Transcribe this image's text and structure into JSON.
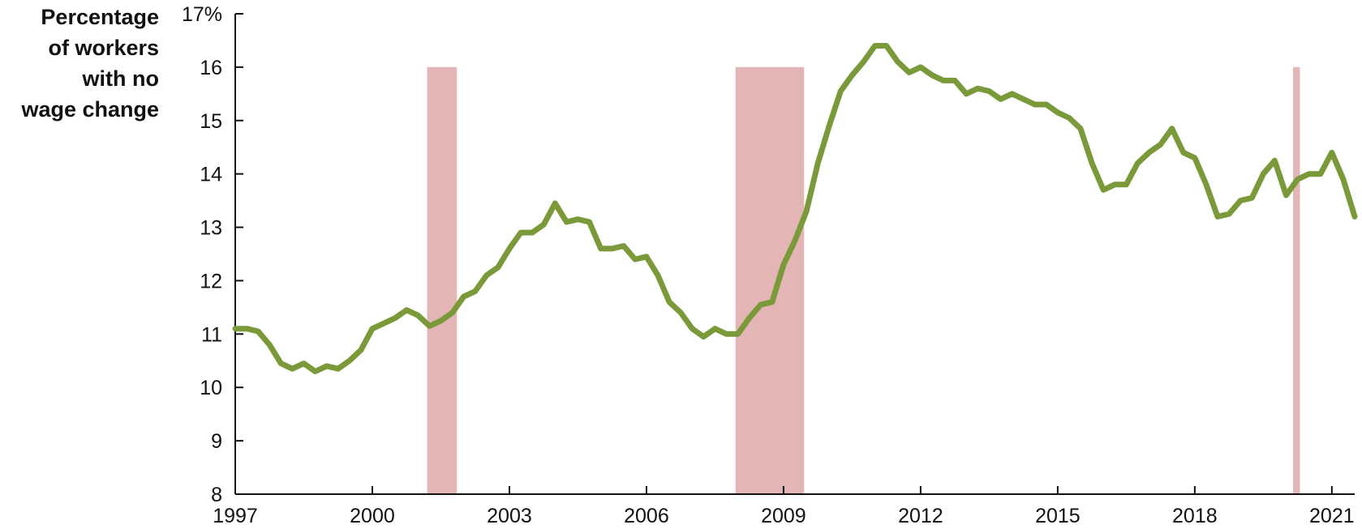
{
  "chart_data": {
    "type": "line",
    "ylabel_lines": [
      "Percentage",
      "of workers",
      "with no",
      "wage change"
    ],
    "ylim": [
      8,
      17
    ],
    "y_ticks": [
      8,
      9,
      10,
      11,
      12,
      13,
      14,
      15,
      16,
      17
    ],
    "y_tick_labels": [
      "8",
      "9",
      "10",
      "11",
      "12",
      "13",
      "14",
      "15",
      "16",
      "17%"
    ],
    "xlim": [
      1997,
      2021.5
    ],
    "x_ticks": [
      1997,
      2000,
      2003,
      2006,
      2009,
      2012,
      2015,
      2018,
      2021
    ],
    "x_tick_labels": [
      "1997",
      "2000",
      "2003",
      "2006",
      "2009",
      "2012",
      "2015",
      "2018",
      "2021"
    ],
    "recessions": [
      {
        "start": 2001.2,
        "end": 2001.85,
        "top": 16
      },
      {
        "start": 2007.95,
        "end": 2009.45,
        "top": 16
      },
      {
        "start": 2020.15,
        "end": 2020.3,
        "top": 16
      }
    ],
    "line_color": "#7a9a3a",
    "recession_color": "#e3b5b4",
    "series": [
      {
        "x": [
          1997.0,
          1997.25,
          1997.5,
          1997.75,
          1998.0,
          1998.25,
          1998.5,
          1998.75,
          1999.0,
          1999.25,
          1999.5,
          1999.75,
          2000.0,
          2000.25,
          2000.5,
          2000.75,
          2001.0,
          2001.25,
          2001.5,
          2001.75,
          2002.0,
          2002.25,
          2002.5,
          2002.75,
          2003.0,
          2003.25,
          2003.5,
          2003.75,
          2004.0,
          2004.25,
          2004.5,
          2004.75,
          2005.0,
          2005.25,
          2005.5,
          2005.75,
          2006.0,
          2006.25,
          2006.5,
          2006.75,
          2007.0,
          2007.25,
          2007.5,
          2007.75,
          2008.0,
          2008.25,
          2008.5,
          2008.75,
          2009.0,
          2009.25,
          2009.5,
          2009.75,
          2010.0,
          2010.25,
          2010.5,
          2010.75,
          2011.0,
          2011.25,
          2011.5,
          2011.75,
          2012.0,
          2012.25,
          2012.5,
          2012.75,
          2013.0,
          2013.25,
          2013.5,
          2013.75,
          2014.0,
          2014.25,
          2014.5,
          2014.75,
          2015.0,
          2015.25,
          2015.5,
          2015.75,
          2016.0,
          2016.25,
          2016.5,
          2016.75,
          2017.0,
          2017.25,
          2017.5,
          2017.75,
          2018.0,
          2018.25,
          2018.5,
          2018.75,
          2019.0,
          2019.25,
          2019.5,
          2019.75,
          2020.0,
          2020.25,
          2020.5,
          2020.75,
          2021.0,
          2021.25,
          2021.5
        ],
        "values": [
          11.1,
          11.1,
          11.05,
          10.8,
          10.45,
          10.35,
          10.45,
          10.3,
          10.4,
          10.35,
          10.5,
          10.7,
          11.1,
          11.2,
          11.3,
          11.45,
          11.35,
          11.15,
          11.25,
          11.4,
          11.7,
          11.8,
          12.1,
          12.25,
          12.6,
          12.9,
          12.9,
          13.05,
          13.45,
          13.1,
          13.15,
          13.1,
          12.6,
          12.6,
          12.65,
          12.4,
          12.45,
          12.1,
          11.6,
          11.4,
          11.1,
          10.95,
          11.1,
          11.0,
          11.0,
          11.3,
          11.55,
          11.6,
          12.3,
          12.75,
          13.3,
          14.2,
          14.9,
          15.55,
          15.85,
          16.1,
          16.4,
          16.4,
          16.1,
          15.9,
          16.0,
          15.85,
          15.75,
          15.75,
          15.5,
          15.6,
          15.55,
          15.4,
          15.5,
          15.4,
          15.3,
          15.3,
          15.15,
          15.05,
          14.85,
          14.2,
          13.7,
          13.8,
          13.8,
          14.2,
          14.4,
          14.55,
          14.85,
          14.4,
          14.3,
          13.8,
          13.2,
          13.25,
          13.5,
          13.55,
          14.0,
          14.25,
          13.6,
          13.9,
          14.0,
          14.0,
          14.4,
          13.9,
          13.2
        ]
      }
    ]
  }
}
